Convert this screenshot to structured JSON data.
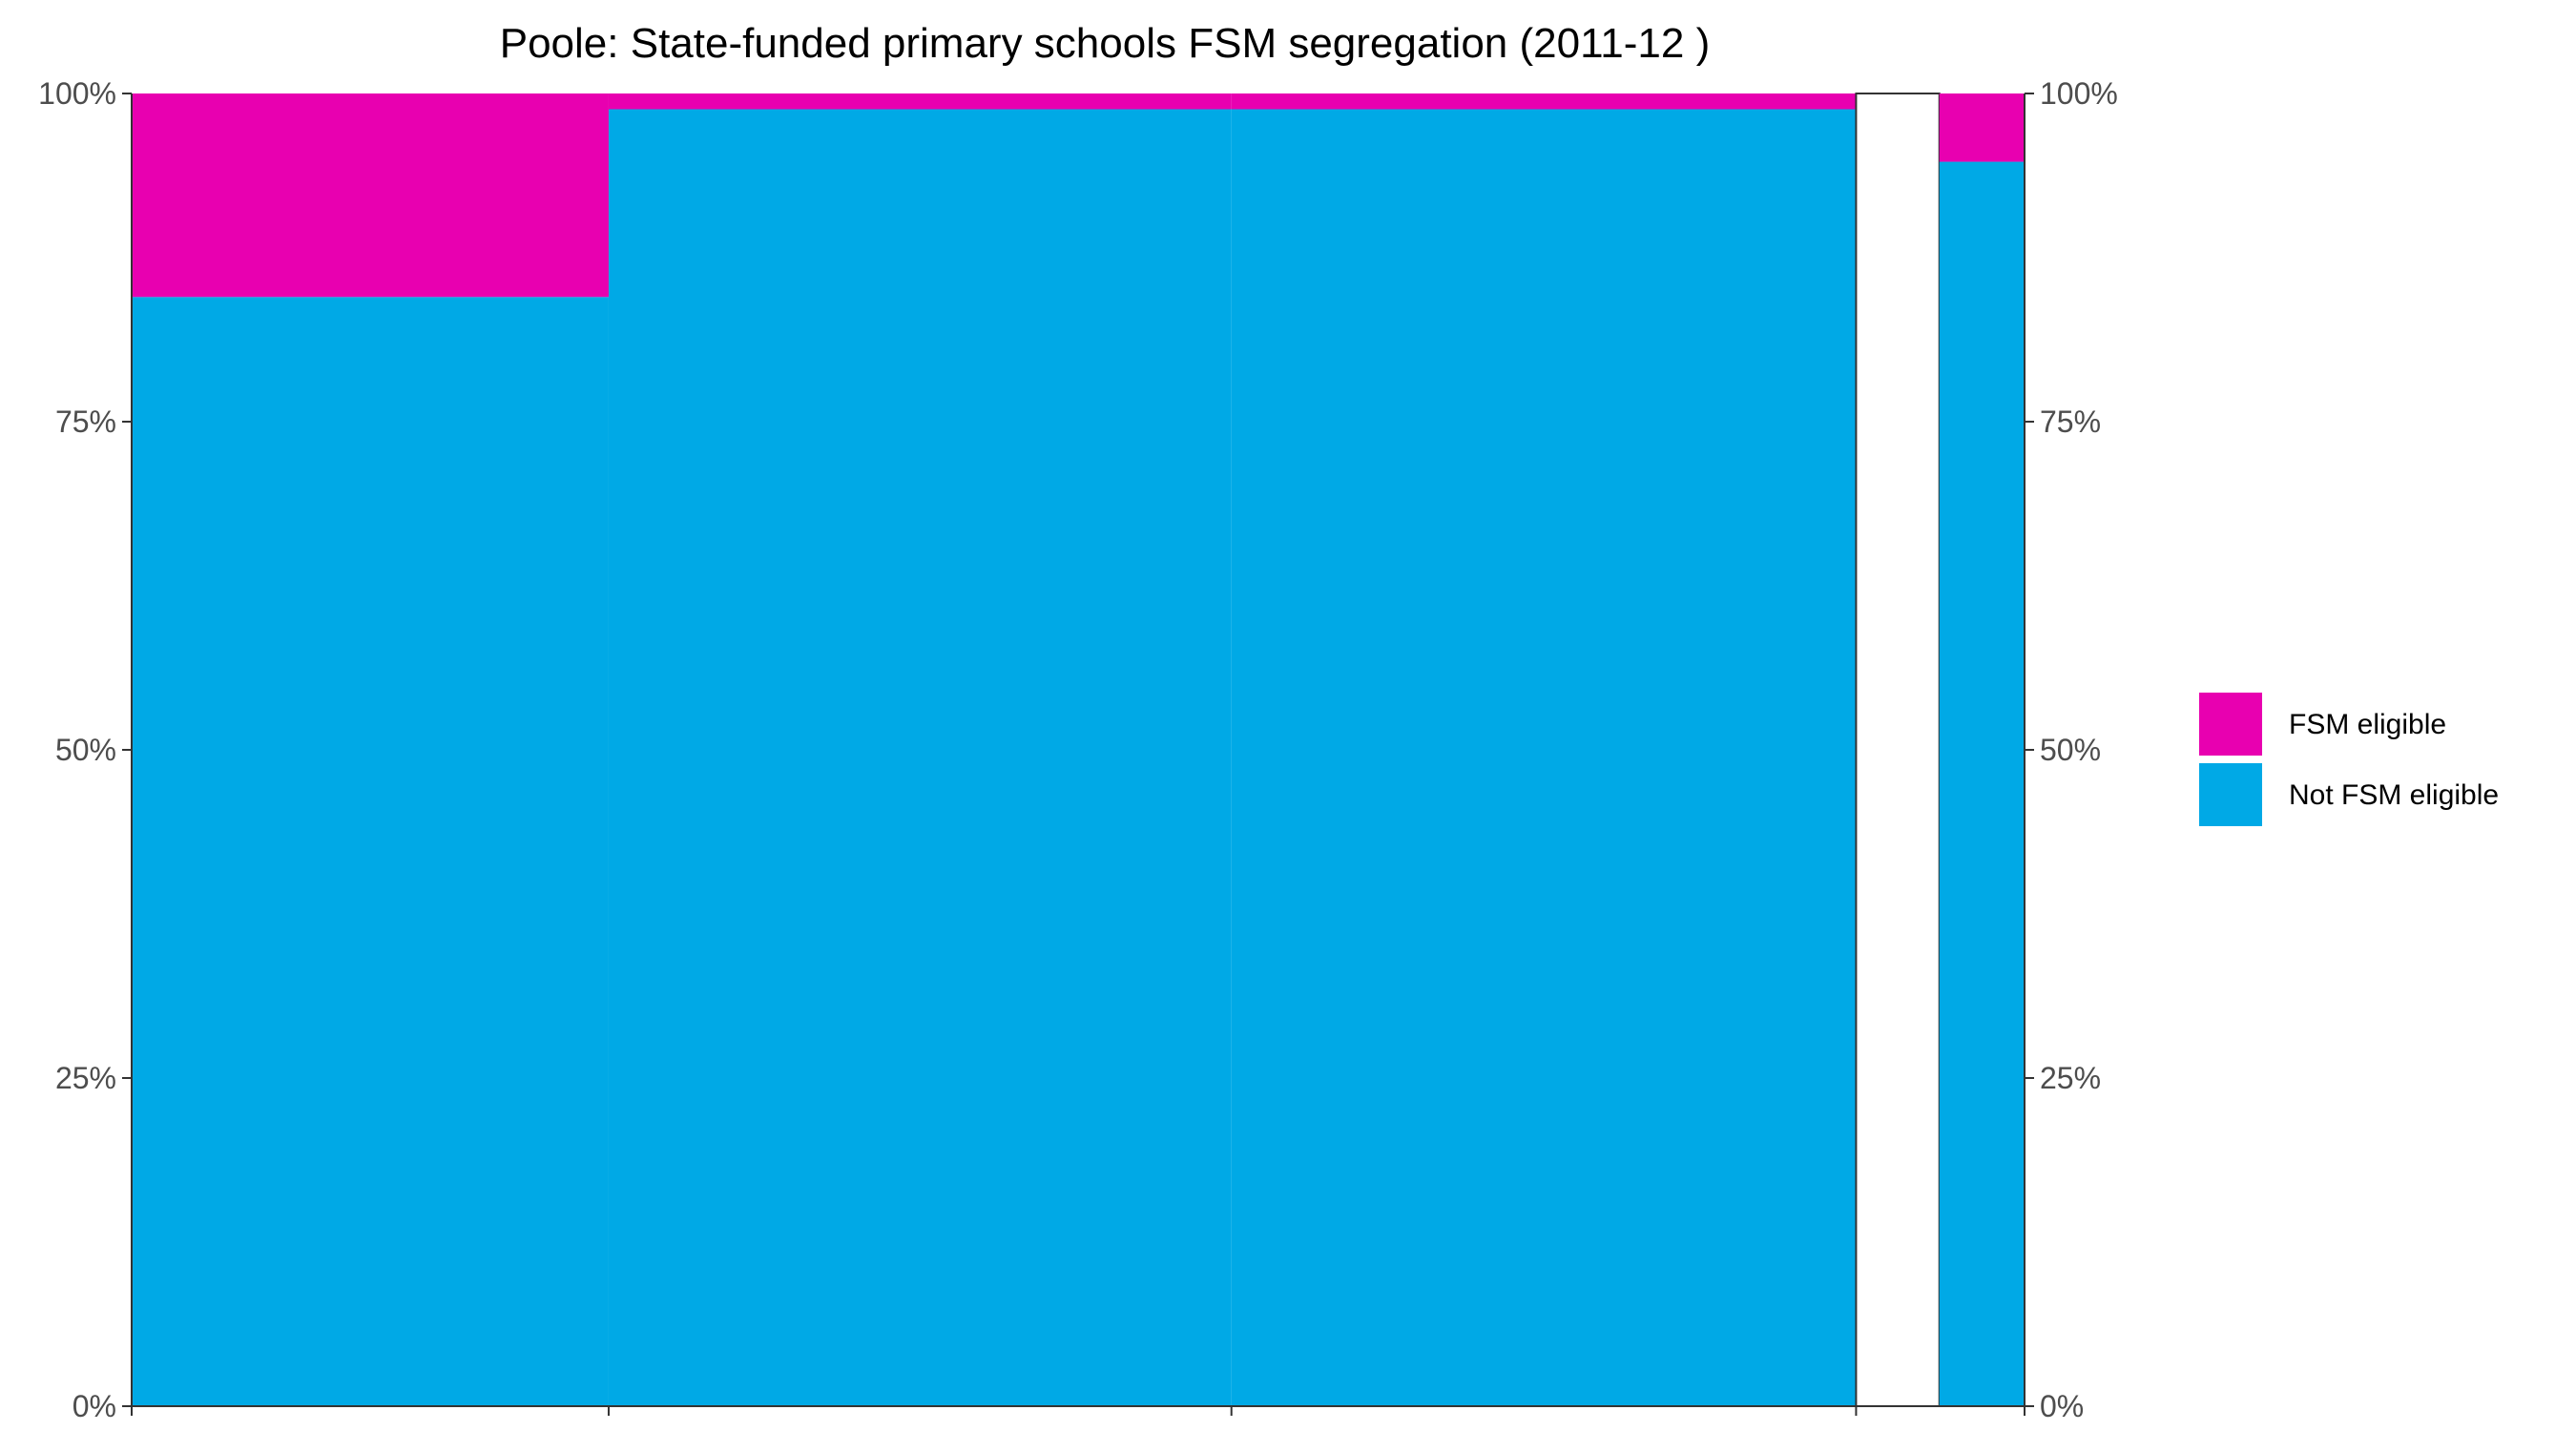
{
  "chart_data": {
    "type": "bar",
    "subtype": "stacked-100-percent-mosaic",
    "title": "Poole: State-funded primary schools FSM segregation (2011-12 )",
    "xlabel": "",
    "ylabel": "",
    "ylim": [
      0,
      1
    ],
    "y_ticks": [
      0,
      0.25,
      0.5,
      0.75,
      1
    ],
    "y_tick_labels": [
      "0%",
      "25%",
      "50%",
      "75%",
      "100%"
    ],
    "y_axis_sides": [
      "left",
      "right"
    ],
    "x_cumulative_range": [
      0,
      100
    ],
    "x_tick_positions": [
      0,
      25.2,
      58.1,
      91.1,
      100
    ],
    "grid": false,
    "legend_position": "right",
    "colors": {
      "fsm": "#e800b0",
      "not_fsm": "#00a9e6",
      "empty": "#ffffff",
      "axis": "#333333"
    },
    "series": [
      {
        "name": "FSM eligible",
        "color_key": "fsm"
      },
      {
        "name": "Not FSM eligible",
        "color_key": "not_fsm"
      }
    ],
    "segments": [
      {
        "width": 25.2,
        "fsm_share": 0.155,
        "not_fsm_share": 0.845
      },
      {
        "width": 32.9,
        "fsm_share": 0.012,
        "not_fsm_share": 0.988
      },
      {
        "width": 33.0,
        "fsm_share": 0.012,
        "not_fsm_share": 0.988
      },
      {
        "width": 4.4,
        "fsm_share": 0,
        "not_fsm_share": 0,
        "empty": true
      },
      {
        "width": 4.5,
        "fsm_share": 0.052,
        "not_fsm_share": 0.948
      }
    ]
  }
}
